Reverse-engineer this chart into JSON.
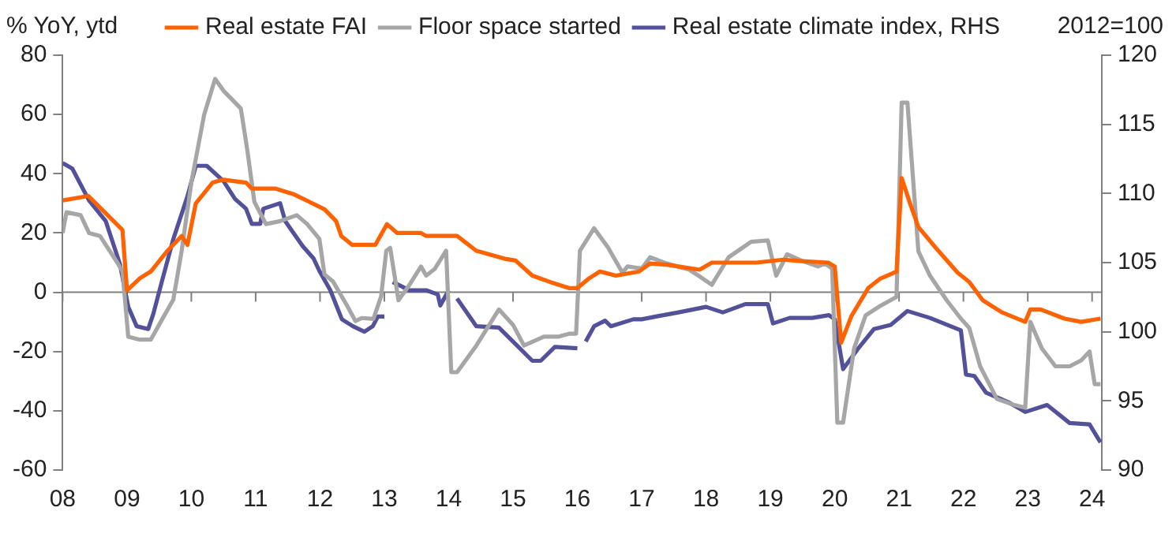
{
  "chart_data": {
    "type": "line",
    "ylabel": "% YoY, ytd",
    "y2label": "2012=100",
    "legend": "top",
    "grid": false,
    "marker": "none",
    "xlim": [
      2008,
      2024.15
    ],
    "xticks": [
      {
        "value": 2008,
        "label": "08"
      },
      {
        "value": 2009,
        "label": "09"
      },
      {
        "value": 2010,
        "label": "10"
      },
      {
        "value": 2011,
        "label": "11"
      },
      {
        "value": 2012,
        "label": "12"
      },
      {
        "value": 2013,
        "label": "13"
      },
      {
        "value": 2014,
        "label": "14"
      },
      {
        "value": 2015,
        "label": "15"
      },
      {
        "value": 2016,
        "label": "16"
      },
      {
        "value": 2017,
        "label": "17"
      },
      {
        "value": 2018,
        "label": "18"
      },
      {
        "value": 2019,
        "label": "19"
      },
      {
        "value": 2020,
        "label": "20"
      },
      {
        "value": 2021,
        "label": "21"
      },
      {
        "value": 2022,
        "label": "22"
      },
      {
        "value": 2023,
        "label": "23"
      },
      {
        "value": 2024,
        "label": "24"
      }
    ],
    "ylim": [
      -60,
      80
    ],
    "yticks": [
      -60,
      -40,
      -20,
      0,
      20,
      40,
      60,
      80
    ],
    "y2lim": [
      90,
      120
    ],
    "y2ticks": [
      90,
      95,
      100,
      105,
      110,
      115,
      120
    ],
    "ref_lines": [
      {
        "axis": "y",
        "value": 0,
        "color": "#808080"
      }
    ],
    "series": [
      {
        "name": "Real estate FAI",
        "color": "#ff6200",
        "x": [
          2008,
          2008.4,
          2008.93,
          2009,
          2009.2,
          2009.37,
          2009.63,
          2009.85,
          2009.94,
          2010.07,
          2010.33,
          2010.5,
          2010.85,
          2010.94,
          2011.3,
          2011.6,
          2012.07,
          2012.25,
          2012.33,
          2012.5,
          2012.86,
          2013.04,
          2013.2,
          2013.57,
          2013.65,
          2014.13,
          2014.43,
          2014.87,
          2015.04,
          2015.3,
          2015.57,
          2015.87,
          2016,
          2016.17,
          2016.35,
          2016.6,
          2016.96,
          2017.13,
          2017.39,
          2017.9,
          2018.09,
          2018.78,
          2019.2,
          2019.48,
          2019.9,
          2020,
          2020.1,
          2020.26,
          2020.52,
          2020.7,
          2020.96,
          2021.04,
          2021.17,
          2021.3,
          2021.57,
          2021.91,
          2022.09,
          2022.3,
          2022.6,
          2022.96,
          2023.04,
          2023.2,
          2023.57,
          2023.83,
          2024.13
        ],
        "values": [
          31,
          32.5,
          21,
          0.6,
          4.7,
          7,
          14,
          19,
          16,
          30,
          37,
          38,
          37,
          35,
          35,
          33,
          28,
          24,
          19,
          16,
          16,
          23,
          20,
          20,
          19,
          19,
          14,
          11.3,
          10.7,
          5.6,
          3.5,
          1.4,
          1.4,
          4.5,
          7,
          5.6,
          7,
          9.7,
          9.3,
          7.6,
          10,
          10,
          11,
          10.5,
          10,
          8.7,
          -17,
          -8,
          1.4,
          4.5,
          7,
          38.5,
          30,
          22,
          15,
          6.6,
          3.5,
          -2.7,
          -6.8,
          -10,
          -5.8,
          -5.8,
          -8.9,
          -10,
          -8.9
        ]
      },
      {
        "name": "Floor space started",
        "color": "#a6a6a6",
        "x": [
          2008,
          2008.06,
          2008.28,
          2008.41,
          2008.58,
          2008.85,
          2008.93,
          2009.02,
          2009.2,
          2009.37,
          2009.55,
          2009.72,
          2009.85,
          2010,
          2010.2,
          2010.37,
          2010.5,
          2010.77,
          2010.87,
          2010.98,
          2011.16,
          2011.38,
          2011.64,
          2011.8,
          2011.99,
          2012.07,
          2012.2,
          2012.42,
          2012.55,
          2012.65,
          2012.83,
          2012.95,
          2013.03,
          2013.09,
          2013.22,
          2013.39,
          2013.57,
          2013.65,
          2013.78,
          2013.96,
          2014.04,
          2014.13,
          2014.43,
          2014.78,
          2015,
          2015.17,
          2015.48,
          2015.7,
          2015.87,
          2015.98,
          2016.04,
          2016.26,
          2016.48,
          2016.7,
          2016.78,
          2017,
          2017.13,
          2017.39,
          2017.74,
          2017.91,
          2018.09,
          2018.35,
          2018.7,
          2018.96,
          2019.09,
          2019.26,
          2019.48,
          2019.74,
          2019.85,
          2019.96,
          2020.04,
          2020.13,
          2020.3,
          2020.48,
          2020.7,
          2020.96,
          2021.04,
          2021.13,
          2021.3,
          2021.48,
          2021.74,
          2021.96,
          2022.09,
          2022.26,
          2022.52,
          2022.78,
          2022.96,
          2023.04,
          2023.22,
          2023.43,
          2023.65,
          2023.83,
          2023.96,
          2024.04,
          2024.13
        ],
        "values": [
          20,
          27,
          26,
          20,
          19,
          10,
          7,
          -15,
          -16,
          -16,
          -9,
          -2.5,
          14,
          37,
          60,
          72,
          68,
          62,
          48,
          30.5,
          23,
          24,
          26,
          23,
          18,
          6,
          3.7,
          -4.5,
          -9.7,
          -8.7,
          -9,
          -1.4,
          14,
          15,
          -2.7,
          2.5,
          8.7,
          5.6,
          7.8,
          14,
          -27,
          -27,
          -18,
          -5.8,
          -11,
          -18,
          -15,
          -15,
          -14,
          -14,
          14,
          21.6,
          15,
          6.6,
          8.7,
          8,
          11.8,
          9.7,
          7.6,
          5.2,
          2.5,
          11.8,
          17,
          17.5,
          5.6,
          12.8,
          10.7,
          8.7,
          9.7,
          8,
          -44,
          -44,
          -19,
          -7.8,
          -4.7,
          -1.6,
          64,
          64,
          13.8,
          5.6,
          -2.7,
          -8.9,
          -12,
          -25,
          -36,
          -38,
          -39,
          -10,
          -19,
          -25,
          -25,
          -23,
          -20,
          -31,
          -31
        ]
      },
      {
        "name": "Real estate climate index, RHS",
        "color": "#525199",
        "axis": "y2",
        "x": [
          2008,
          2008.15,
          2008.41,
          2008.67,
          2008.89,
          2009.02,
          2009.15,
          2009.33,
          2009.41,
          2009.54,
          2009.72,
          2009.94,
          2010.07,
          2010.24,
          2010.5,
          2010.68,
          2010.85,
          2010.94,
          2011.07,
          2011.12,
          2011.38,
          2011.46,
          2011.73,
          2011.9,
          2011.99,
          2012.16,
          2012.34,
          2012.51,
          2012.69,
          2012.82,
          2012.9,
          2013,
          2013.06,
          2013.13,
          2013.39,
          2013.65,
          2013.83,
          2013.87,
          2014,
          2014.06,
          2014.13,
          2014.43,
          2014.78,
          2015.04,
          2015.3,
          2015.43,
          2015.65,
          2016,
          2016.06,
          2016.13,
          2016.26,
          2016.43,
          2016.52,
          2016.87,
          2017,
          2017.22,
          2017.57,
          2018,
          2018.26,
          2018.61,
          2018.96,
          2019.04,
          2019.3,
          2019.65,
          2019.91,
          2020,
          2020.13,
          2020.35,
          2020.61,
          2020.87,
          2021.13,
          2021.48,
          2021.96,
          2022.04,
          2022.17,
          2022.35,
          2022.7,
          2022.96,
          2023.3,
          2023.65,
          2023.96,
          2024.13
        ],
        "values": [
          112.2,
          111.8,
          109.5,
          108,
          104.9,
          101.8,
          100.4,
          100.2,
          101.3,
          103.6,
          106.7,
          109.8,
          112,
          112,
          110.9,
          109.6,
          108.9,
          107.8,
          107.8,
          108.9,
          109.3,
          108,
          106.2,
          105.3,
          104.4,
          103,
          100.9,
          100.4,
          100,
          100.4,
          101.1,
          101.1,
          null,
          103.6,
          103,
          103,
          102.7,
          101.9,
          103,
          null,
          102.4,
          100.4,
          100.3,
          99.1,
          97.9,
          97.9,
          98.9,
          98.8,
          null,
          99.3,
          100.4,
          100.8,
          100.4,
          100.9,
          100.9,
          101.1,
          101.4,
          101.8,
          101.4,
          102,
          102,
          100.6,
          101,
          101,
          101.2,
          100.9,
          97.3,
          98.7,
          100.2,
          100.5,
          101.5,
          101,
          100.1,
          96.9,
          96.8,
          95.6,
          94.9,
          94.2,
          94.7,
          93.4,
          93.3,
          92
        ]
      }
    ]
  }
}
